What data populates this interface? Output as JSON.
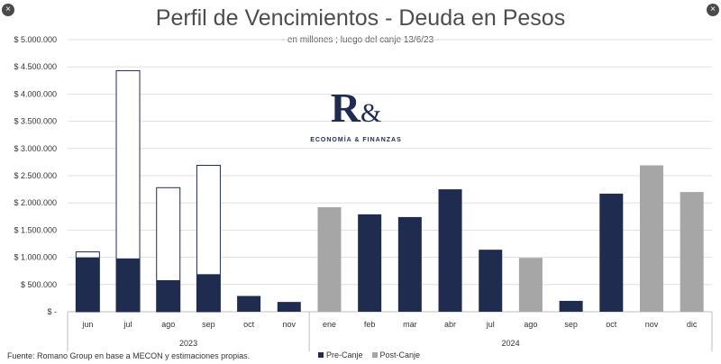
{
  "title": "Perfil de Vencimientos - Deuda en Pesos",
  "subtitle": "- en millones ; luego del canje 13/6/23 -",
  "source": "Fuente: Romano Group en base a MECON y estimaciones propias.",
  "logo": {
    "mark": "R",
    "amp": "&",
    "text": "ECONOMÍA & FINANZAS"
  },
  "window_controls": {
    "close_icon": "×"
  },
  "colors": {
    "pre_canje": "#1f2c50",
    "post_canje": "#a6a6a6",
    "canje_outline": "#1f2c50",
    "grid": "#d9d9d9"
  },
  "chart_data": {
    "type": "bar",
    "title": "Perfil de Vencimientos - Deuda en Pesos",
    "subtitle": "- en millones ; luego del canje 13/6/23 -",
    "ylim": [
      0,
      5000000
    ],
    "y_ticks": [
      "$ -",
      "$ 500.000",
      "$ 1.000.000",
      "$ 1.500.000",
      "$ 2.000.000",
      "$ 2.500.000",
      "$ 3.000.000",
      "$ 3.500.000",
      "$ 4.000.000",
      "$ 4.500.000",
      "$ 5.000.000"
    ],
    "grid": true,
    "legend_position": "bottom",
    "categories": [
      "jun",
      "jul",
      "ago",
      "sep",
      "oct",
      "nov",
      "ene",
      "feb",
      "mar",
      "abr",
      "jul",
      "ago",
      "sep",
      "oct",
      "nov",
      "dic"
    ],
    "year_groups": [
      {
        "label": "2023",
        "count": 6
      },
      {
        "label": "2024",
        "count": 10
      }
    ],
    "series": [
      {
        "name": "Pre-Canje",
        "color": "#1f2c50",
        "values": [
          1000000,
          980000,
          580000,
          690000,
          290000,
          180000,
          null,
          1790000,
          1740000,
          2250000,
          1140000,
          null,
          200000,
          2170000,
          null,
          null
        ]
      },
      {
        "name": "Post-Canje",
        "color": "#a6a6a6",
        "values": [
          null,
          null,
          null,
          null,
          null,
          null,
          1920000,
          null,
          null,
          null,
          null,
          990000,
          null,
          null,
          2690000,
          2200000
        ]
      },
      {
        "name": "",
        "color": "#ffffff",
        "values": [
          1100000,
          4430000,
          2280000,
          2690000,
          null,
          null,
          null,
          null,
          null,
          null,
          null,
          null,
          null,
          null,
          null,
          null
        ]
      }
    ],
    "legend": [
      "Pre-Canje",
      "Post-Canje"
    ]
  }
}
